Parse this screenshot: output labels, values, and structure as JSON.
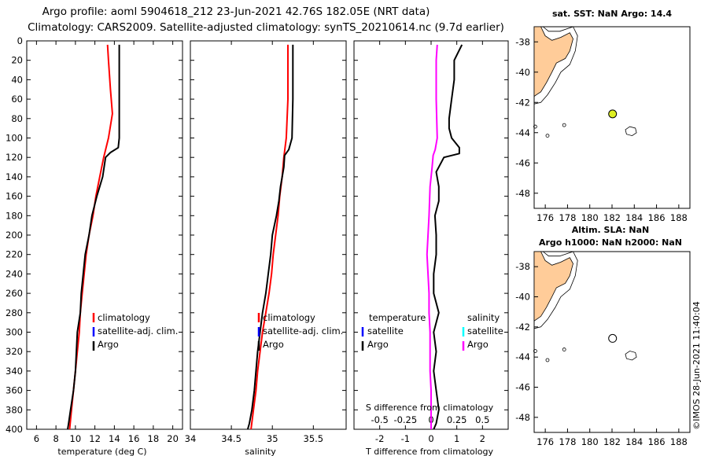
{
  "title": {
    "line1": "Argo profile: aoml 5904618_212 23-Jun-2021 42.76S 182.05E (NRT data)",
    "line2": "Climatology: CARS2009. Satellite-adjusted climatology: synTS_20210614.nc (9.7d earlier)"
  },
  "depth_ticks": [
    "0",
    "20",
    "40",
    "60",
    "80",
    "100",
    "120",
    "140",
    "160",
    "180",
    "200",
    "220",
    "240",
    "260",
    "280",
    "300",
    "320",
    "340",
    "360",
    "380",
    "400"
  ],
  "colors": {
    "argo": "#000000",
    "climatology": "#ff0000",
    "satellite": "#0000ff",
    "salinity_diff": "#ff00ff",
    "salinity_sat": "#00ffff",
    "land": "#ffcc99",
    "marker_fill": "#ddee22"
  },
  "chart_data": [
    {
      "type": "line",
      "name": "temperature",
      "xlabel": "temperature (deg C)",
      "xlim": [
        5,
        21
      ],
      "ylim": [
        400,
        0
      ],
      "ylabel": "depth",
      "xticks": [
        "6",
        "8",
        "10",
        "12",
        "14",
        "16",
        "18",
        "20"
      ],
      "legend": [
        "climatology",
        "satellite-adj. clim.",
        "Argo"
      ],
      "series": [
        {
          "name": "Argo",
          "depth": [
            4,
            20,
            60,
            100,
            110,
            115,
            120,
            140,
            160,
            180,
            200,
            220,
            240,
            260,
            280,
            300,
            320,
            340,
            360,
            380,
            394,
            400
          ],
          "values": [
            14.5,
            14.5,
            14.5,
            14.5,
            14.4,
            13.6,
            13.1,
            12.8,
            12.2,
            11.7,
            11.4,
            11.0,
            10.8,
            10.6,
            10.5,
            10.2,
            10.1,
            10.0,
            9.8,
            9.5,
            9.3,
            9.2
          ]
        },
        {
          "name": "climatology",
          "depth": [
            4,
            20,
            50,
            75,
            100,
            120,
            140,
            160,
            180,
            200,
            220,
            240,
            260,
            280,
            300,
            320,
            340,
            360,
            380,
            400
          ],
          "values": [
            13.3,
            13.4,
            13.6,
            13.8,
            13.4,
            12.9,
            12.5,
            12.1,
            11.8,
            11.4,
            11.1,
            10.9,
            10.7,
            10.5,
            10.4,
            10.2,
            10.0,
            9.8,
            9.6,
            9.4
          ]
        }
      ]
    },
    {
      "type": "line",
      "name": "salinity",
      "xlabel": "salinity",
      "xlim": [
        34,
        35.9
      ],
      "ylim": [
        400,
        0
      ],
      "xticks": [
        "34",
        "34.5",
        "35",
        "35.5"
      ],
      "legend": [
        "climatology",
        "satellite-adj. clim.",
        "Argo"
      ],
      "series": [
        {
          "name": "Argo",
          "depth": [
            4,
            20,
            60,
            100,
            112,
            118,
            130,
            150,
            165,
            180,
            200,
            220,
            240,
            260,
            280,
            300,
            320,
            340,
            360,
            380,
            394,
            400
          ],
          "values": [
            35.25,
            35.25,
            35.25,
            35.24,
            35.2,
            35.15,
            35.14,
            35.1,
            35.08,
            35.05,
            35.0,
            34.98,
            34.95,
            34.92,
            34.88,
            34.85,
            34.82,
            34.8,
            34.78,
            34.75,
            34.72,
            34.7
          ]
        },
        {
          "name": "climatology",
          "depth": [
            4,
            20,
            60,
            100,
            120,
            140,
            160,
            180,
            200,
            220,
            240,
            260,
            280,
            300,
            320,
            340,
            360,
            380,
            400
          ],
          "values": [
            35.19,
            35.19,
            35.19,
            35.17,
            35.14,
            35.12,
            35.09,
            35.07,
            35.04,
            35.01,
            34.99,
            34.96,
            34.92,
            34.88,
            34.85,
            34.82,
            34.8,
            34.77,
            34.74
          ]
        }
      ]
    },
    {
      "type": "line",
      "name": "difference",
      "xlabel": "T difference from climatology",
      "xlabel_top": "S difference from climatology",
      "xlim": [
        -3,
        3
      ],
      "ylim": [
        400,
        0
      ],
      "xticks": [
        "-2",
        "-1",
        "0",
        "1",
        "2"
      ],
      "xticks_top": [
        "-0.5",
        "-0.25",
        "0",
        "0.25",
        "0.5"
      ],
      "legend_left_title": "temperature",
      "legend_right_title": "salinity",
      "legend_left": [
        "satellite",
        "Argo"
      ],
      "legend_right": [
        "satellite",
        "Argo"
      ],
      "series": [
        {
          "name": "T difference (Argo)",
          "depth": [
            4,
            20,
            40,
            60,
            80,
            90,
            100,
            110,
            116,
            120,
            135,
            150,
            165,
            180,
            200,
            220,
            240,
            260,
            280,
            300,
            320,
            340,
            360,
            380,
            394,
            400
          ],
          "values": [
            1.2,
            0.9,
            0.9,
            0.8,
            0.7,
            0.7,
            0.8,
            1.1,
            1.1,
            0.5,
            0.2,
            0.3,
            0.3,
            0.15,
            0.2,
            0.2,
            0.1,
            0.1,
            0.3,
            0.1,
            0.2,
            0.1,
            0.2,
            0.3,
            0.2,
            0.1
          ]
        },
        {
          "name": "S difference (Argo)",
          "depth": [
            4,
            20,
            60,
            100,
            112,
            118,
            130,
            150,
            180,
            200,
            220,
            240,
            260,
            280,
            300,
            320,
            340,
            360,
            380,
            400
          ],
          "values": [
            0.06,
            0.05,
            0.05,
            0.06,
            0.04,
            0.02,
            0.01,
            -0.01,
            -0.02,
            -0.03,
            -0.04,
            -0.03,
            -0.02,
            -0.02,
            -0.01,
            -0.01,
            -0.01,
            0.0,
            0.0,
            0.0
          ]
        }
      ]
    },
    {
      "type": "scatter",
      "name": "map-sst",
      "title": "sat. SST: NaN Argo: 14.4",
      "xlim": [
        175,
        189
      ],
      "ylim": [
        -49,
        -37
      ],
      "xticks": [
        "176",
        "178",
        "180",
        "182",
        "184",
        "186",
        "188"
      ],
      "yticks": [
        "-38",
        "-40",
        "-42",
        "-44",
        "-46",
        "-48"
      ],
      "points": [
        {
          "lon": 182.05,
          "lat": -42.76
        }
      ]
    },
    {
      "type": "scatter",
      "name": "map-sla",
      "title_line1": "Altim. SLA: NaN",
      "title_line2": "Argo h1000: NaN h2000: NaN",
      "xlim": [
        175,
        189
      ],
      "ylim": [
        -49,
        -37
      ],
      "xticks": [
        "176",
        "178",
        "180",
        "182",
        "184",
        "186",
        "188"
      ],
      "yticks": [
        "-38",
        "-40",
        "-42",
        "-44",
        "-46",
        "-48"
      ],
      "points": [
        {
          "lon": 182.05,
          "lat": -42.76
        }
      ]
    }
  ],
  "credit": "©IMOS 28-Jun-2021 11:40:04"
}
